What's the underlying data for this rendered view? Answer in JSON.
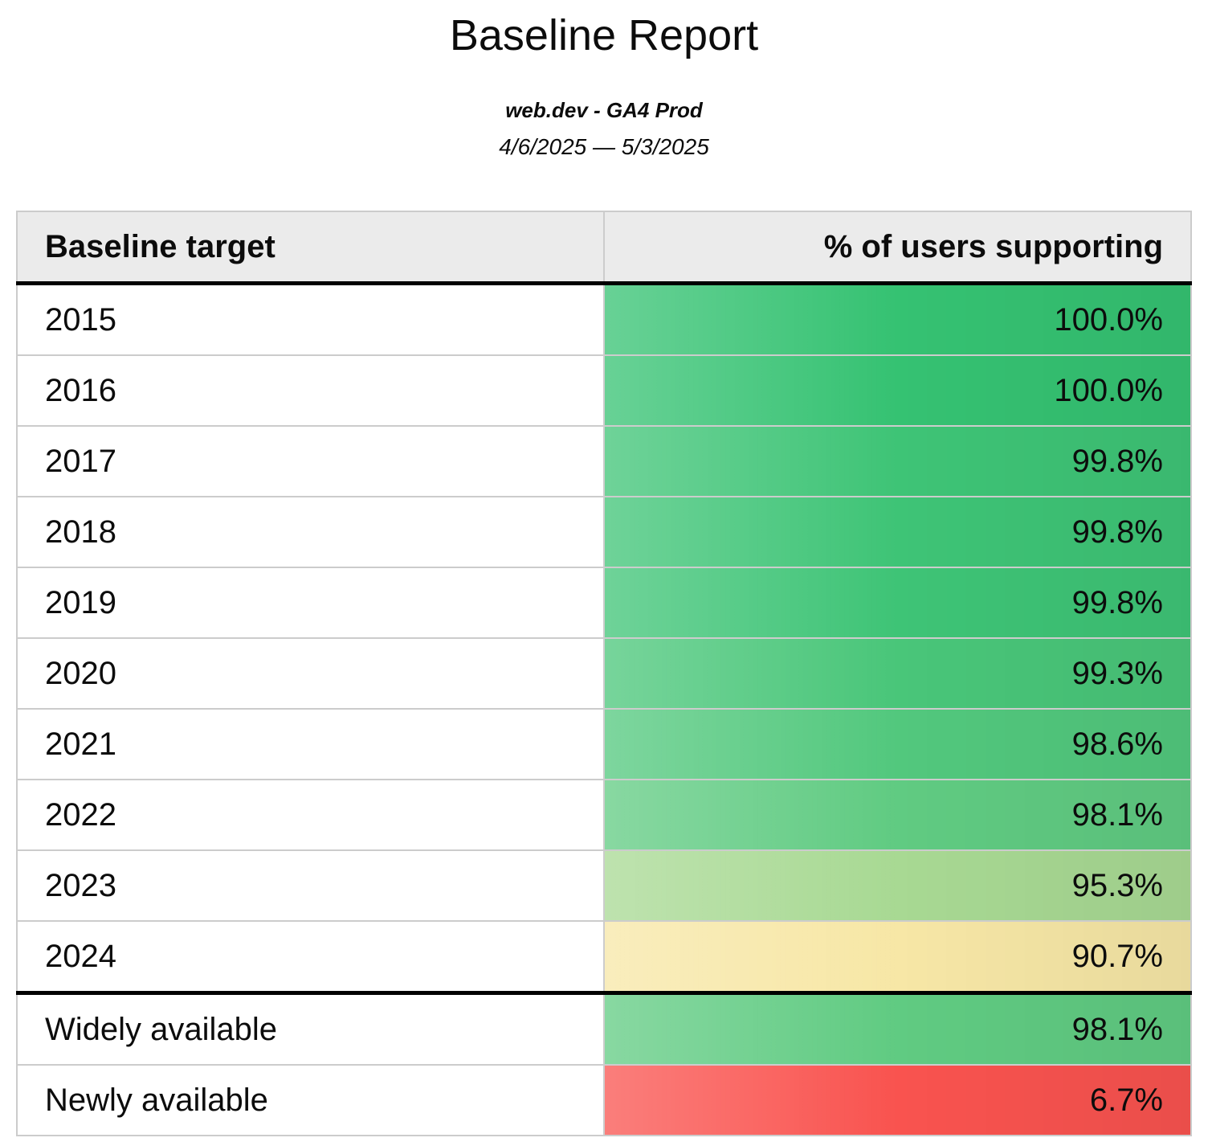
{
  "report": {
    "title": "Baseline Report",
    "subtitle": "web.dev - GA4 Prod",
    "date_range": "4/6/2025 — 5/3/2025"
  },
  "table": {
    "headers": {
      "target": "Baseline target",
      "support": "% of users supporting"
    },
    "rows": [
      {
        "target": "2015",
        "support": "100.0%",
        "color": "#35c272"
      },
      {
        "target": "2016",
        "support": "100.0%",
        "color": "#35c272"
      },
      {
        "target": "2017",
        "support": "99.8%",
        "color": "#3ec476"
      },
      {
        "target": "2018",
        "support": "99.8%",
        "color": "#3ec476"
      },
      {
        "target": "2019",
        "support": "99.8%",
        "color": "#3ec476"
      },
      {
        "target": "2020",
        "support": "99.3%",
        "color": "#49c679"
      },
      {
        "target": "2021",
        "support": "98.6%",
        "color": "#52c87d"
      },
      {
        "target": "2022",
        "support": "98.1%",
        "color": "#60cb82"
      },
      {
        "target": "2023",
        "support": "95.3%",
        "color": "#a8d993"
      },
      {
        "target": "2024",
        "support": "90.7%",
        "color": "#f7e7a6"
      },
      {
        "target": "Widely available",
        "support": "98.1%",
        "color": "#60cb82",
        "section_start": true
      },
      {
        "target": "Newly available",
        "support": "6.7%",
        "color": "#f9534f"
      }
    ]
  },
  "colors": {
    "header_background": "#ebebeb",
    "grid_border": "#cccccc",
    "strong_border": "#000000",
    "page_background": "#ffffff",
    "text": "#0c0c0c"
  }
}
